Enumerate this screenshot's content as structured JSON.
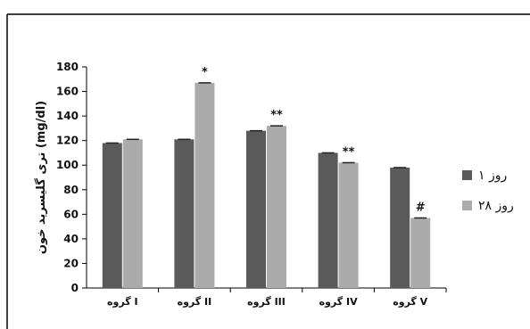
{
  "chart_data": {
    "type": "bar",
    "ylabel": "تری گلیسرید خون (mg/dl)",
    "ylim": [
      0,
      180
    ],
    "yticks": [
      0,
      20,
      40,
      60,
      80,
      100,
      120,
      140,
      160,
      180
    ],
    "categories": [
      "گروه I",
      "گروه II",
      "گروه III",
      "گروه IV",
      "گروه V"
    ],
    "series": [
      {
        "name": "روز ۱",
        "values": [
          118,
          121,
          128,
          110,
          98
        ],
        "color": "#5a5a5a"
      },
      {
        "name": "روز ۲۸",
        "values": [
          121,
          167,
          132,
          102,
          57
        ],
        "color": "#ababab"
      }
    ],
    "annotations": [
      {
        "category_index": 1,
        "series_index": 1,
        "text": "*"
      },
      {
        "category_index": 2,
        "series_index": 1,
        "text": "**"
      },
      {
        "category_index": 3,
        "series_index": 1,
        "text": "**"
      },
      {
        "category_index": 4,
        "series_index": 1,
        "text": "#"
      }
    ],
    "legend_position": "right",
    "grid": false
  }
}
